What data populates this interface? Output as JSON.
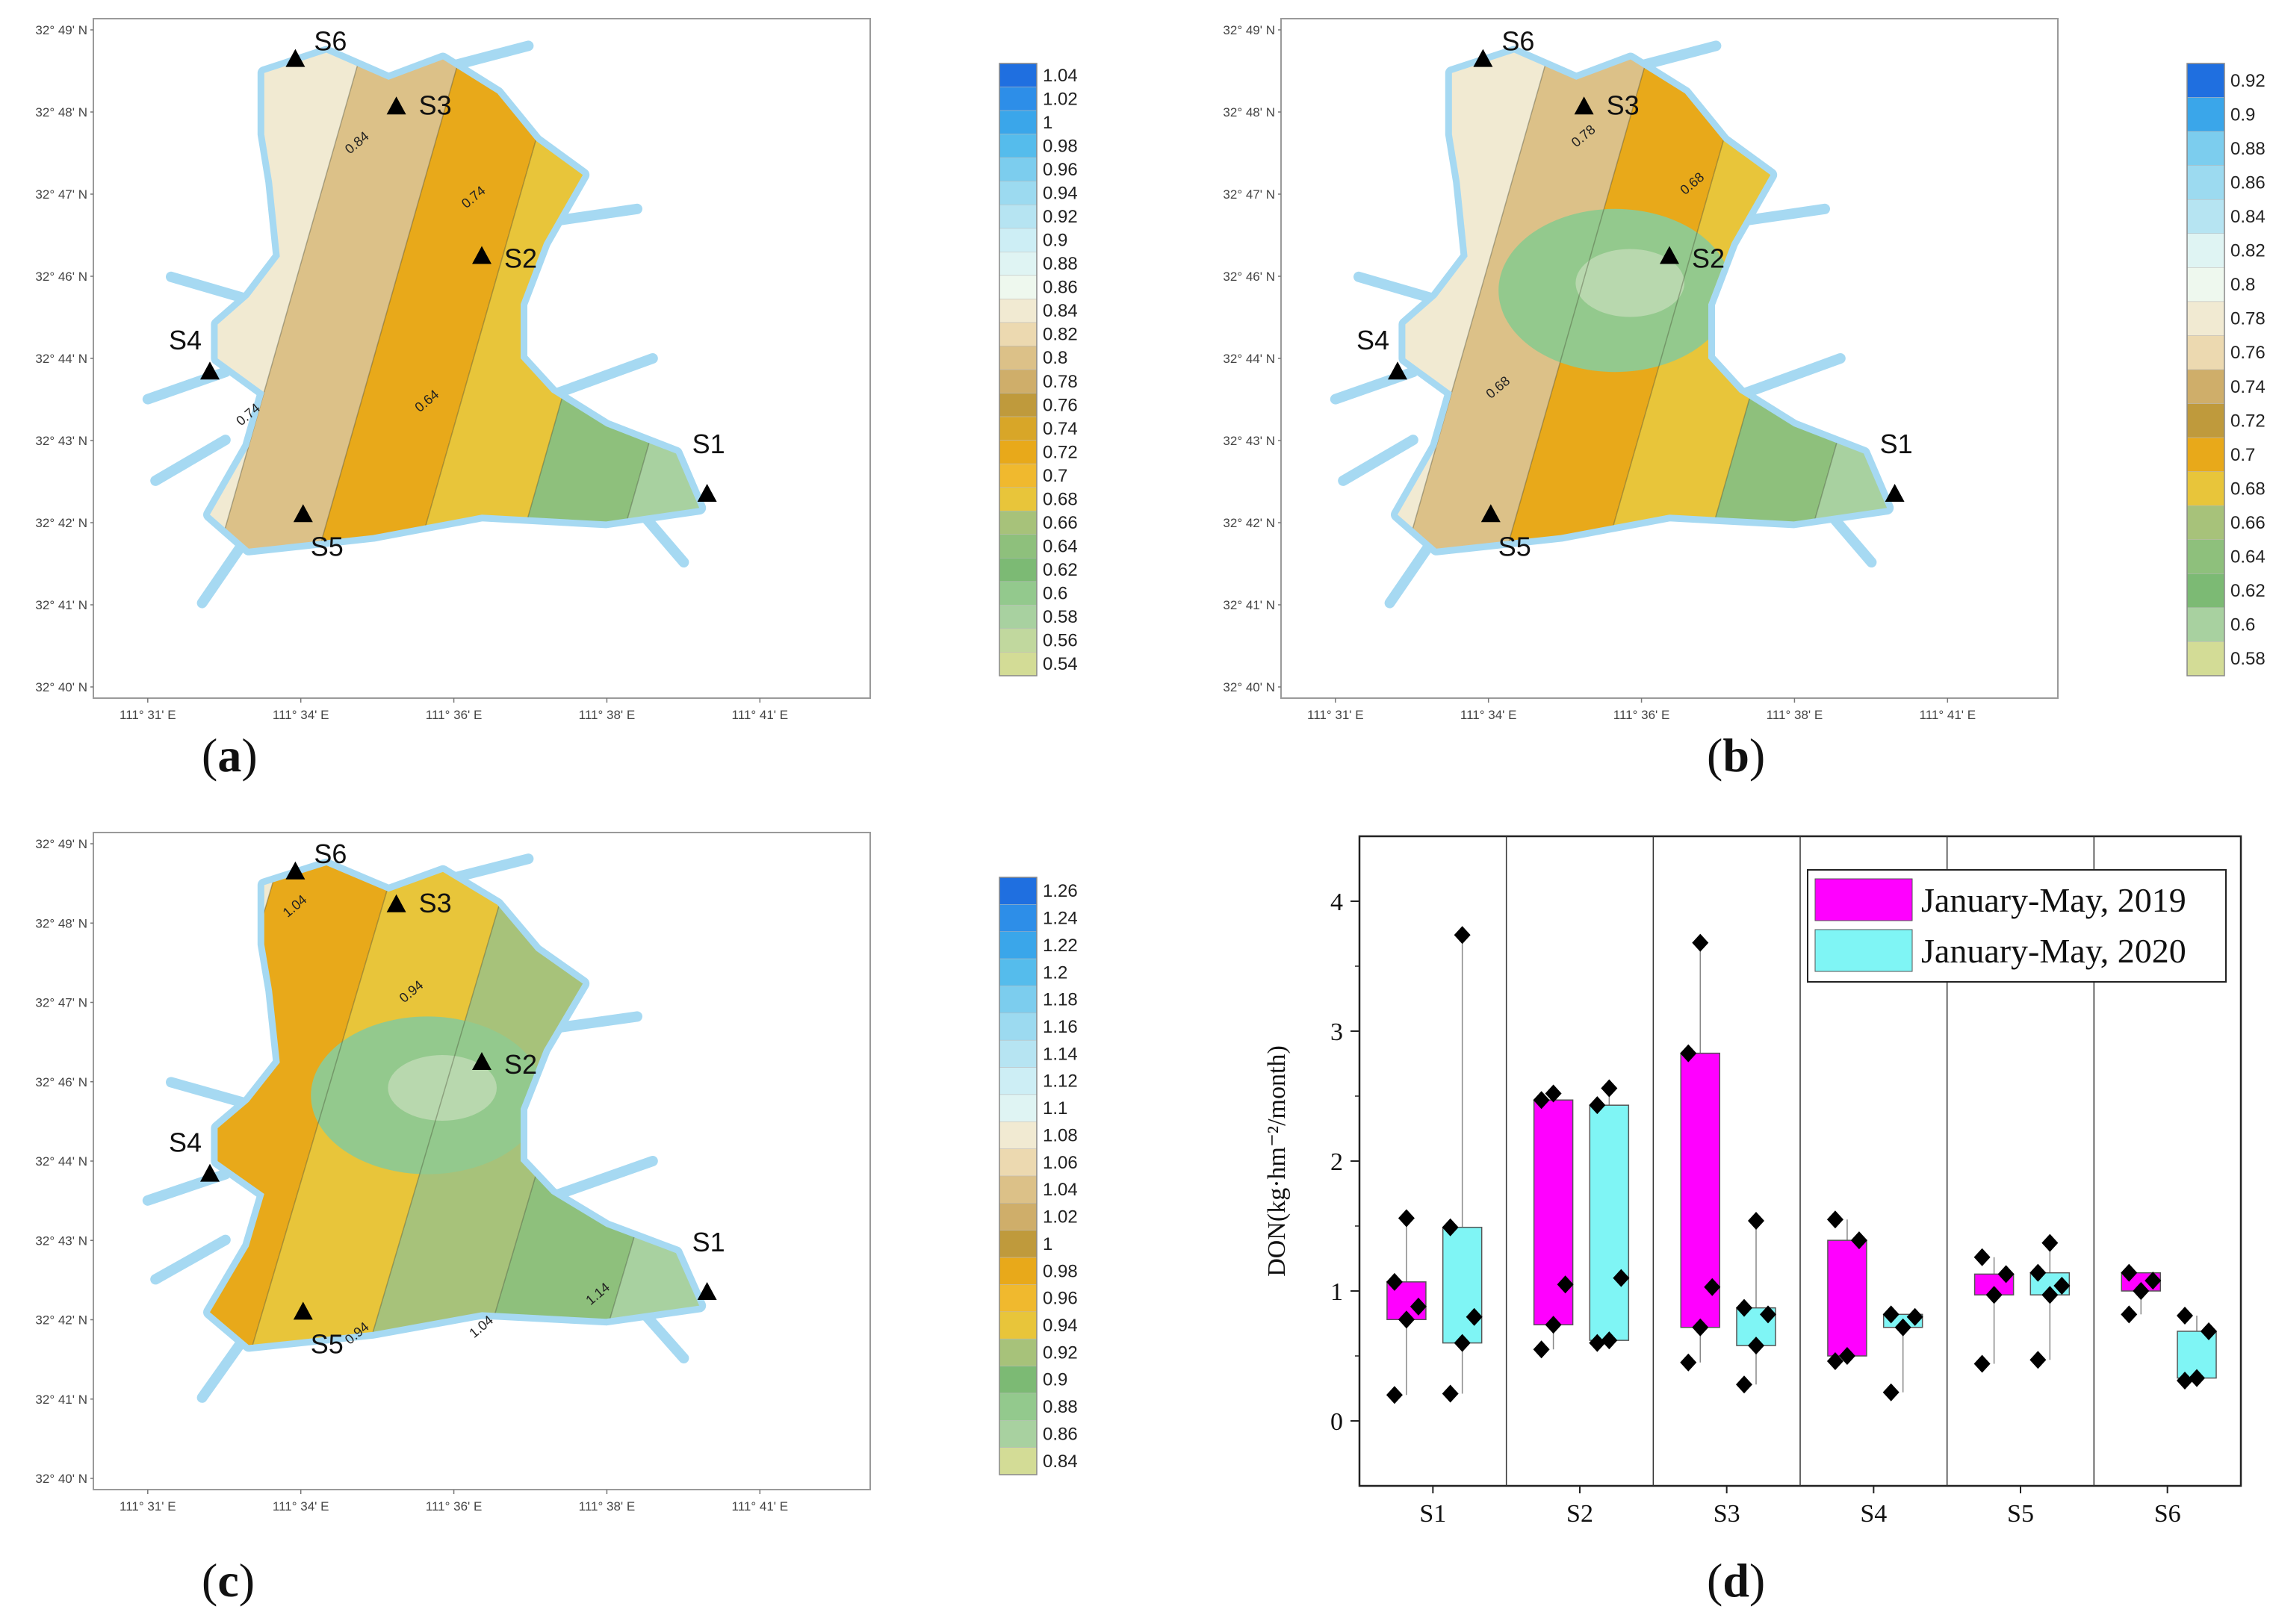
{
  "maps": [
    {
      "id": "a",
      "caption": "a",
      "lat_labels": [
        "32° 49' N",
        "32° 48' N",
        "32° 47' N",
        "32° 46' N",
        "32° 44' N",
        "32° 43' N",
        "32° 42' N",
        "32° 41' N",
        "32° 40' N"
      ],
      "lon_labels": [
        "111° 31' E",
        "111° 34' E",
        "111° 36' E",
        "111° 38' E",
        "111° 41' E"
      ],
      "stations": [
        "S6",
        "S3",
        "S2",
        "S4",
        "S1",
        "S5"
      ],
      "contour_labels": [
        "0.84",
        "0.74",
        "0.74",
        "0.64"
      ],
      "legend": [
        "1.04",
        "1.02",
        "1",
        "0.98",
        "0.96",
        "0.94",
        "0.92",
        "0.9",
        "0.88",
        "0.86",
        "0.84",
        "0.82",
        "0.8",
        "0.78",
        "0.76",
        "0.74",
        "0.72",
        "0.7",
        "0.68",
        "0.66",
        "0.64",
        "0.62",
        "0.6",
        "0.58",
        "0.56",
        "0.54"
      ],
      "legend_colors": [
        "#1f6fe0",
        "#2d8ee8",
        "#3aa6ea",
        "#55bcec",
        "#7ccdee",
        "#9cdaf0",
        "#b6e4f2",
        "#cdeef5",
        "#dff4f3",
        "#eef8ee",
        "#f1ead2",
        "#ecd9b0",
        "#dcc188",
        "#cfae6a",
        "#bf9a3c",
        "#d8a628",
        "#e8a91a",
        "#f0b92e",
        "#e8c53a",
        "#a7c27a",
        "#8ec07c",
        "#7cba74",
        "#93c98d",
        "#a8d1a0",
        "#c1d89e",
        "#d3dc96"
      ],
      "regions": [
        {
          "color": "#cde9f2"
        },
        {
          "color": "#f1ead2"
        },
        {
          "color": "#dcc188"
        },
        {
          "color": "#e8a91a"
        },
        {
          "color": "#e8c53a"
        },
        {
          "color": "#8ec07c"
        },
        {
          "color": "#a8d1a0"
        }
      ]
    },
    {
      "id": "b",
      "caption": "b",
      "lat_labels": [
        "32° 49' N",
        "32° 48' N",
        "32° 47' N",
        "32° 46' N",
        "32° 44' N",
        "32° 43' N",
        "32° 42' N",
        "32° 41' N",
        "32° 40' N"
      ],
      "lon_labels": [
        "111° 31' E",
        "111° 34' E",
        "111° 36' E",
        "111° 38' E",
        "111° 41' E"
      ],
      "stations": [
        "S6",
        "S3",
        "S2",
        "S4",
        "S1",
        "S5"
      ],
      "contour_labels": [
        "0.78",
        "0.68",
        "0.68"
      ],
      "legend": [
        "0.92",
        "0.9",
        "0.88",
        "0.86",
        "0.84",
        "0.82",
        "0.8",
        "0.78",
        "0.76",
        "0.74",
        "0.72",
        "0.7",
        "0.68",
        "0.66",
        "0.64",
        "0.62",
        "0.6",
        "0.58"
      ],
      "legend_colors": [
        "#1f6fe0",
        "#3aa6ea",
        "#7ccdee",
        "#9cdaf0",
        "#b6e4f2",
        "#dff4f3",
        "#eef8ee",
        "#f1ead2",
        "#ecd9b0",
        "#cfae6a",
        "#bf9a3c",
        "#e8a91a",
        "#e8c53a",
        "#a7c27a",
        "#8ec07c",
        "#7cba74",
        "#a8d1a0",
        "#d3dc96"
      ],
      "regions": [
        {
          "color": "#cde9f2"
        },
        {
          "color": "#f1ead2"
        },
        {
          "color": "#dcc188"
        },
        {
          "color": "#e8a91a"
        },
        {
          "color": "#e8c53a"
        },
        {
          "color": "#8ec07c"
        },
        {
          "color": "#a8d1a0"
        }
      ]
    },
    {
      "id": "c",
      "caption": "c",
      "lat_labels": [
        "32° 49' N",
        "32° 48' N",
        "32° 47' N",
        "32° 46' N",
        "32° 44' N",
        "32° 43' N",
        "32° 42' N",
        "32° 41' N",
        "32° 40' N"
      ],
      "lon_labels": [
        "111° 31' E",
        "111° 34' E",
        "111° 36' E",
        "111° 38' E",
        "111° 41' E"
      ],
      "stations": [
        "S6",
        "S3",
        "S2",
        "S4",
        "S1",
        "S5"
      ],
      "contour_labels": [
        "1.04",
        "0.94",
        "0.94",
        "1.04",
        "1.14"
      ],
      "legend": [
        "1.26",
        "1.24",
        "1.22",
        "1.2",
        "1.18",
        "1.16",
        "1.14",
        "1.12",
        "1.1",
        "1.08",
        "1.06",
        "1.04",
        "1.02",
        "1",
        "0.98",
        "0.96",
        "0.94",
        "0.92",
        "0.9",
        "0.88",
        "0.86",
        "0.84"
      ],
      "legend_colors": [
        "#1f6fe0",
        "#2d8ee8",
        "#3aa6ea",
        "#55bcec",
        "#7ccdee",
        "#9cdaf0",
        "#b6e4f2",
        "#cdeef5",
        "#dff4f3",
        "#f1ead2",
        "#ecd9b0",
        "#dcc188",
        "#cfae6a",
        "#bf9a3c",
        "#e8a91a",
        "#f0b92e",
        "#e8c53a",
        "#a7c27a",
        "#7cba74",
        "#93c98d",
        "#a8d1a0",
        "#d3dc96"
      ],
      "regions": [
        {
          "color": "#f1ead2"
        },
        {
          "color": "#e8a91a"
        },
        {
          "color": "#e8c53a"
        },
        {
          "color": "#a7c27a"
        },
        {
          "color": "#8ec07c"
        },
        {
          "color": "#a8d1a0"
        }
      ]
    }
  ],
  "chart_data": {
    "type": "box",
    "caption": "d",
    "categories": [
      "S1",
      "S2",
      "S3",
      "S4",
      "S5",
      "S6"
    ],
    "ylabel": "DON(kg·hm⁻²/month)",
    "ylim": [
      -0.5,
      4.5
    ],
    "yticks": [
      "0",
      "1",
      "2",
      "3",
      "4"
    ],
    "grid": false,
    "legend_placement": "top-right",
    "series": [
      {
        "name": "January-May, 2019",
        "color": "#ff00ff",
        "boxes": [
          {
            "q1": 0.78,
            "q3": 1.07,
            "points": [
              0.2,
              0.78,
              0.88,
              1.07,
              1.56
            ]
          },
          {
            "q1": 0.74,
            "q3": 2.47,
            "points": [
              0.55,
              0.74,
              1.05,
              2.47,
              2.52
            ]
          },
          {
            "q1": 0.72,
            "q3": 2.83,
            "points": [
              0.45,
              0.72,
              1.03,
              2.83,
              3.68
            ]
          },
          {
            "q1": 0.5,
            "q3": 1.39,
            "points": [
              0.46,
              0.5,
              1.39,
              1.55
            ]
          },
          {
            "q1": 0.97,
            "q3": 1.13,
            "points": [
              0.44,
              0.97,
              1.13,
              1.26
            ]
          },
          {
            "q1": 1.0,
            "q3": 1.14,
            "points": [
              0.82,
              1.0,
              1.08,
              1.14
            ]
          }
        ]
      },
      {
        "name": "January-May, 2020",
        "color": "#7ff5f5",
        "boxes": [
          {
            "q1": 0.6,
            "q3": 1.49,
            "points": [
              0.21,
              0.6,
              0.8,
              1.49,
              3.74
            ]
          },
          {
            "q1": 0.62,
            "q3": 2.43,
            "points": [
              0.6,
              0.62,
              1.1,
              2.43,
              2.56
            ]
          },
          {
            "q1": 0.58,
            "q3": 0.87,
            "points": [
              0.28,
              0.58,
              0.82,
              0.87,
              1.54
            ]
          },
          {
            "q1": 0.72,
            "q3": 0.82,
            "points": [
              0.22,
              0.72,
              0.8,
              0.82
            ]
          },
          {
            "q1": 0.97,
            "q3": 1.14,
            "points": [
              0.47,
              0.97,
              1.04,
              1.14,
              1.37
            ]
          },
          {
            "q1": 0.33,
            "q3": 0.69,
            "points": [
              0.31,
              0.33,
              0.69,
              0.81
            ]
          }
        ]
      }
    ]
  }
}
